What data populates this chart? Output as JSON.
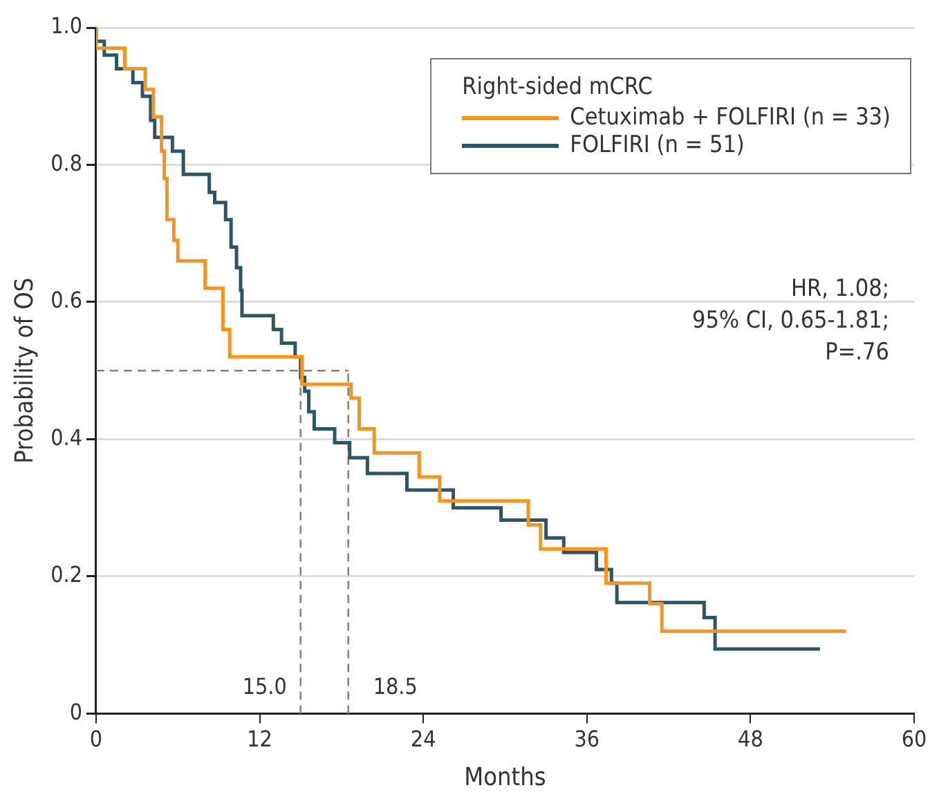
{
  "chart_data": {
    "type": "step",
    "xlabel": "Months",
    "ylabel": "Probability of OS",
    "legend_title": "Right-sided mCRC",
    "legend": "top right",
    "grid": "y",
    "xlim": [
      0,
      60
    ],
    "xticks": [
      0,
      12,
      24,
      36,
      48,
      60
    ],
    "ylim": [
      0,
      1
    ],
    "yticks": [
      {
        "value": 0,
        "label": "0"
      },
      0.2,
      0.4,
      0.6,
      0.8,
      {
        "value": 1,
        "label": "1.0"
      }
    ],
    "series": [
      {
        "name": "Cetuximab + FOLFIRI (n = 33)",
        "color": "#f7941d",
        "x": [
          0,
          2.1,
          3.6,
          4.2,
          4.8,
          5.0,
          5.2,
          5.7,
          6.0,
          8.0,
          9.3,
          9.8,
          15.1,
          18.7,
          19.3,
          20.4,
          23.7,
          25.2,
          31.7,
          32.6,
          37.4,
          40.6,
          41.5,
          43.9,
          55.0
        ],
        "values": [
          1,
          0.97,
          0.94,
          0.91,
          0.87,
          0.82,
          0.78,
          0.72,
          0.69,
          0.66,
          0.62,
          0.56,
          0.52,
          0.48,
          0.46,
          0.415,
          0.38,
          0.345,
          0.31,
          0.275,
          0.24,
          0.19,
          0.16,
          0.12,
          0.12
        ]
      },
      {
        "name": "FOLFIRI (n = 51)",
        "color": "#2e5566",
        "x": [
          0,
          0.6,
          1.5,
          2.7,
          3.4,
          4.0,
          4.3,
          5.6,
          6.4,
          8.3,
          8.7,
          9.5,
          9.9,
          10.3,
          10.6,
          10.7,
          13.0,
          13.6,
          14.6,
          15.0,
          15.3,
          15.6,
          16.0,
          17.5,
          18.6,
          19.9,
          22.8,
          26.2,
          29.7,
          33.0,
          34.3,
          36.7,
          37.8,
          38.2,
          44.6,
          45.4,
          51.0,
          53.1
        ],
        "values": [
          1,
          0.98,
          0.96,
          0.94,
          0.92,
          0.9,
          0.865,
          0.84,
          0.82,
          0.786,
          0.76,
          0.745,
          0.72,
          0.68,
          0.65,
          0.617,
          0.58,
          0.56,
          0.54,
          0.52,
          0.49,
          0.47,
          0.44,
          0.415,
          0.395,
          0.373,
          0.35,
          0.326,
          0.3,
          0.282,
          0.256,
          0.235,
          0.21,
          0.19,
          0.162,
          0.14,
          0.094,
          0.094
        ]
      }
    ],
    "ref_lines": [
      {
        "axis": "y",
        "value": 0.5,
        "label": null,
        "color": "#8a8170",
        "line_style": "dashed"
      },
      {
        "axis": "x",
        "value": 15.0,
        "label": "15.0",
        "color": "#8a8170",
        "line_style": "dashed"
      },
      {
        "axis": "x",
        "value": 18.5,
        "label": "18.5",
        "color": "#8a8170",
        "line_style": "dashed"
      }
    ],
    "annotations": [
      "HR, 1.08;",
      "95% CI, 0.65-1.81;",
      "P=.76"
    ]
  }
}
